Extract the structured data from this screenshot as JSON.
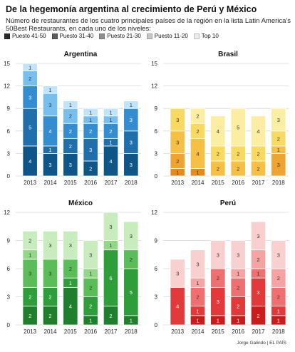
{
  "title": "De la hegemonía argentina al crecimiento de Perú y México",
  "subtitle": "Número de restaurantes de los cuatro principales países de la región en la lista Latin America's 50Best Restaurants, en cada uno de los niveles:",
  "credit": "Jorge Galindo | EL PAÍS",
  "legend": [
    {
      "label": "Puesto 41-50",
      "shade": 0
    },
    {
      "label": "Puesto 31-40",
      "shade": 1
    },
    {
      "label": "Puesto 21-30",
      "shade": 2
    },
    {
      "label": "Puesto 11-20",
      "shade": 3
    },
    {
      "label": "Top 10",
      "shade": 4
    }
  ],
  "legend_colors": [
    "#2b2b2b",
    "#5c5c5c",
    "#8f8f8f",
    "#c6c6c6",
    "#ebebeb"
  ],
  "chart_data": [
    {
      "type": "bar",
      "stacked": true,
      "title": "Argentina",
      "categories": [
        "2013",
        "2014",
        "2015",
        "2016",
        "2017",
        "2018"
      ],
      "ylim": [
        0,
        15
      ],
      "yticks": [
        0,
        3,
        6,
        9,
        12,
        15
      ],
      "grid": true,
      "colors": [
        "#0e5687",
        "#1f6fad",
        "#348dd0",
        "#76bfef",
        "#bfe4fb"
      ],
      "series": [
        {
          "name": "Puesto 41-50",
          "values": [
            4,
            3,
            3,
            2,
            4,
            3
          ]
        },
        {
          "name": "Puesto 31-40",
          "values": [
            5,
            1,
            2,
            3,
            1,
            3
          ]
        },
        {
          "name": "Puesto 21-30",
          "values": [
            3,
            4,
            2,
            2,
            2,
            3
          ]
        },
        {
          "name": "Puesto 11-20",
          "values": [
            2,
            3,
            2,
            1,
            1,
            0
          ]
        },
        {
          "name": "Top 10",
          "values": [
            1,
            1,
            1,
            1,
            1,
            1
          ]
        }
      ]
    },
    {
      "type": "bar",
      "stacked": true,
      "title": "Brasil",
      "categories": [
        "2013",
        "2014",
        "2015",
        "2016",
        "2017",
        "2018"
      ],
      "ylim": [
        0,
        15
      ],
      "yticks": [
        0,
        3,
        6,
        9,
        12,
        15
      ],
      "grid": true,
      "colors": [
        "#e68a1c",
        "#f0a430",
        "#f5c044",
        "#f8da62",
        "#fbeea2"
      ],
      "series": [
        {
          "name": "Puesto 41-50",
          "values": [
            1,
            1,
            0,
            0,
            0,
            0
          ]
        },
        {
          "name": "Puesto 31-40",
          "values": [
            2,
            0,
            0,
            0,
            0,
            3
          ]
        },
        {
          "name": "Puesto 21-30",
          "values": [
            3,
            4,
            2,
            2,
            2,
            1
          ]
        },
        {
          "name": "Puesto 11-20",
          "values": [
            3,
            2,
            2,
            2,
            2,
            2
          ]
        },
        {
          "name": "Top 10",
          "values": [
            0,
            2,
            4,
            5,
            4,
            3
          ]
        }
      ]
    },
    {
      "type": "bar",
      "stacked": true,
      "title": "México",
      "categories": [
        "2013",
        "2014",
        "2015",
        "2016",
        "2017",
        "2018"
      ],
      "ylim": [
        0,
        12
      ],
      "yticks": [
        0,
        3,
        6,
        9,
        12
      ],
      "grid": true,
      "colors": [
        "#1f7f2c",
        "#2e9e3b",
        "#5bbd58",
        "#93d789",
        "#c8ecbd"
      ],
      "series": [
        {
          "name": "Puesto 41-50",
          "values": [
            2,
            2,
            4,
            1,
            2,
            1
          ]
        },
        {
          "name": "Puesto 31-40",
          "values": [
            2,
            2,
            1,
            2,
            6,
            5
          ]
        },
        {
          "name": "Puesto 21-30",
          "values": [
            3,
            3,
            2,
            2,
            0,
            2
          ]
        },
        {
          "name": "Puesto 11-20",
          "values": [
            1,
            0,
            0,
            1,
            1,
            0
          ]
        },
        {
          "name": "Top 10",
          "values": [
            2,
            3,
            3,
            3,
            3,
            3
          ]
        }
      ]
    },
    {
      "type": "bar",
      "stacked": true,
      "title": "Perú",
      "categories": [
        "2013",
        "2014",
        "2015",
        "2016",
        "2017",
        "2018"
      ],
      "ylim": [
        0,
        12
      ],
      "yticks": [
        0,
        3,
        6,
        9,
        12
      ],
      "grid": true,
      "colors": [
        "#c91d1d",
        "#e23a3a",
        "#ef7070",
        "#f5a3a3",
        "#f9d0d0"
      ],
      "series": [
        {
          "name": "Puesto 41-50",
          "values": [
            0,
            1,
            1,
            1,
            2,
            1
          ]
        },
        {
          "name": "Puesto 31-40",
          "values": [
            4,
            1,
            3,
            2,
            3,
            1
          ]
        },
        {
          "name": "Puesto 21-30",
          "values": [
            0,
            2,
            2,
            2,
            1,
            2
          ]
        },
        {
          "name": "Puesto 11-20",
          "values": [
            0,
            1,
            0,
            1,
            2,
            2
          ]
        },
        {
          "name": "Top 10",
          "values": [
            3,
            3,
            3,
            3,
            3,
            3
          ]
        }
      ]
    }
  ]
}
